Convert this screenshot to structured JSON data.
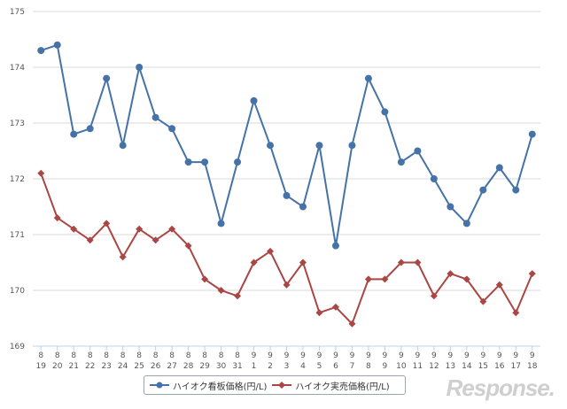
{
  "chart_data": {
    "type": "line",
    "title": "",
    "xlabel": "",
    "ylabel": "",
    "ylim": [
      169,
      175
    ],
    "yticks": [
      "169",
      "170",
      "171",
      "172",
      "173",
      "174",
      "175"
    ],
    "categories": [
      {
        "month": "8",
        "day": "19"
      },
      {
        "month": "8",
        "day": "20"
      },
      {
        "month": "8",
        "day": "21"
      },
      {
        "month": "8",
        "day": "22"
      },
      {
        "month": "8",
        "day": "23"
      },
      {
        "month": "8",
        "day": "24"
      },
      {
        "month": "8",
        "day": "25"
      },
      {
        "month": "8",
        "day": "26"
      },
      {
        "month": "8",
        "day": "27"
      },
      {
        "month": "8",
        "day": "28"
      },
      {
        "month": "8",
        "day": "29"
      },
      {
        "month": "8",
        "day": "30"
      },
      {
        "month": "8",
        "day": "31"
      },
      {
        "month": "9",
        "day": "1"
      },
      {
        "month": "9",
        "day": "2"
      },
      {
        "month": "9",
        "day": "3"
      },
      {
        "month": "9",
        "day": "4"
      },
      {
        "month": "9",
        "day": "5"
      },
      {
        "month": "9",
        "day": "6"
      },
      {
        "month": "9",
        "day": "7"
      },
      {
        "month": "9",
        "day": "8"
      },
      {
        "month": "9",
        "day": "9"
      },
      {
        "month": "9",
        "day": "10"
      },
      {
        "month": "9",
        "day": "11"
      },
      {
        "month": "9",
        "day": "12"
      },
      {
        "month": "9",
        "day": "13"
      },
      {
        "month": "9",
        "day": "14"
      },
      {
        "month": "9",
        "day": "15"
      },
      {
        "month": "9",
        "day": "16"
      },
      {
        "month": "9",
        "day": "17"
      },
      {
        "month": "9",
        "day": "18"
      }
    ],
    "series": [
      {
        "name": "ハイオク看板価格(円/L)",
        "color": "#4572a7",
        "marker": "circle",
        "values": [
          174.3,
          174.4,
          172.8,
          172.9,
          173.8,
          172.6,
          174.0,
          173.1,
          172.9,
          172.3,
          172.3,
          171.2,
          172.3,
          173.4,
          172.6,
          171.7,
          171.5,
          172.6,
          170.8,
          172.6,
          173.8,
          173.2,
          172.3,
          172.5,
          172.0,
          171.5,
          171.2,
          171.8,
          172.2,
          171.8,
          172.8
        ]
      },
      {
        "name": "ハイオク実売価格(円/L)",
        "color": "#aa4643",
        "marker": "diamond",
        "values": [
          172.1,
          171.3,
          171.1,
          170.9,
          171.2,
          170.6,
          171.1,
          170.9,
          171.1,
          170.8,
          170.2,
          170.0,
          169.9,
          170.5,
          170.7,
          170.1,
          170.5,
          169.6,
          169.7,
          169.4,
          170.2,
          170.2,
          170.5,
          170.5,
          169.9,
          170.3,
          170.2,
          169.8,
          170.1,
          169.6,
          170.3
        ]
      }
    ]
  },
  "watermark": "Response."
}
